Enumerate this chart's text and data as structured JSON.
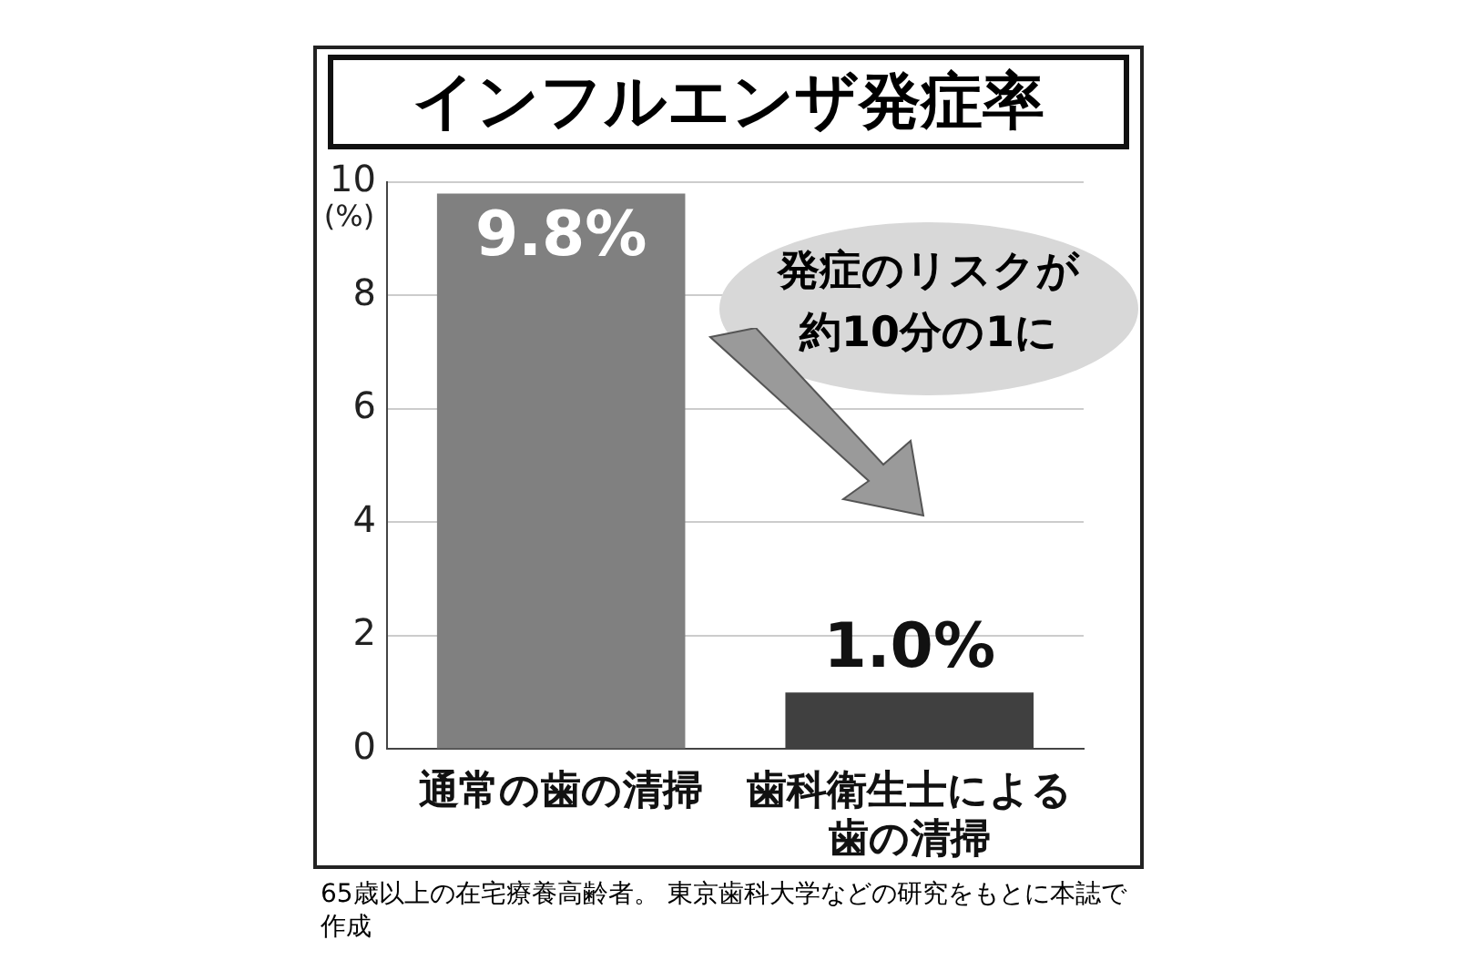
{
  "chart_data": {
    "type": "bar",
    "title": "インフルエンザ発症率",
    "ylabel": "(%)",
    "categories": [
      "通常の歯の清掃",
      "歯科衛生士による歯の清掃"
    ],
    "values": [
      9.8,
      1.0
    ],
    "colors": [
      "#808080",
      "#404040"
    ],
    "value_labels": [
      "9.8%",
      "1.0%"
    ],
    "ylim": [
      0,
      10
    ],
    "yticks": [
      0,
      2,
      4,
      6,
      8,
      10
    ],
    "grid": "y",
    "annotations": [
      "発症のリスクが約10分の1に",
      "65歳以上の在宅療養高齢者。 東京歯科大学などの研究をもとに本誌で作成"
    ]
  }
}
